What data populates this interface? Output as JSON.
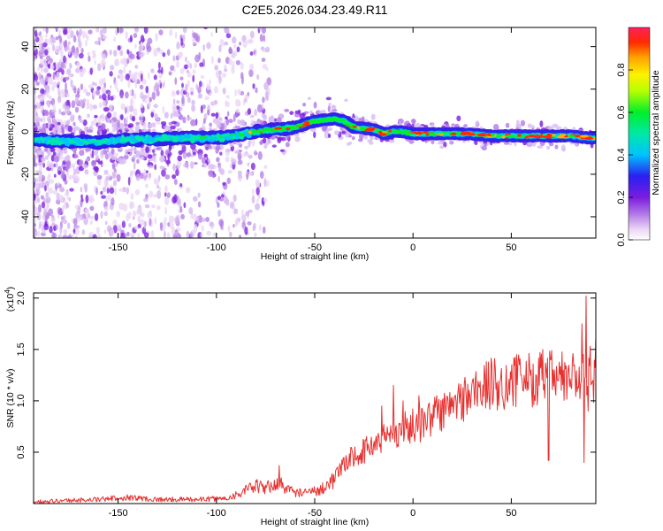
{
  "chart_data": [
    {
      "type": "heatmap",
      "title": "C2E5.2026.034.23.49.R11",
      "xlabel": "Height of straight line (km)",
      "ylabel": "Frequency (Hz)",
      "xlim": [
        -193,
        93
      ],
      "ylim": [
        -50,
        49
      ],
      "xticks": [
        -150,
        -100,
        -50,
        0,
        50
      ],
      "yticks": [
        -40,
        -20,
        0,
        20,
        40
      ],
      "center_line": [
        [
          -193,
          -4
        ],
        [
          -160,
          -5
        ],
        [
          -150,
          -4
        ],
        [
          -120,
          -3
        ],
        [
          -100,
          -3
        ],
        [
          -90,
          -2
        ],
        [
          -80,
          0
        ],
        [
          -70,
          1
        ],
        [
          -60,
          2
        ],
        [
          -50,
          5
        ],
        [
          -40,
          6
        ],
        [
          -35,
          5
        ],
        [
          -30,
          2
        ],
        [
          -20,
          1
        ],
        [
          -15,
          -1
        ],
        [
          -10,
          0
        ],
        [
          -5,
          0
        ],
        [
          0,
          -1
        ],
        [
          10,
          -1
        ],
        [
          20,
          -1
        ],
        [
          30,
          -1
        ],
        [
          40,
          -2
        ],
        [
          50,
          -2
        ],
        [
          60,
          -2
        ],
        [
          70,
          -2
        ],
        [
          80,
          -2
        ],
        [
          90,
          -3
        ]
      ],
      "colorbar": {
        "label": "Normalized spectral amplitude",
        "range": [
          0,
          1
        ],
        "ticks": [
          "0.0",
          "0.2",
          "0.4",
          "0.6",
          "0.8"
        ]
      }
    },
    {
      "type": "line",
      "xlabel": "Height of straight line (km)",
      "ylabel": "SNR (10 * v/v)",
      "scale_label": "(x10",
      "scale_exp": "4",
      "scale_close": ")",
      "xlim": [
        -193,
        93
      ],
      "ylim": [
        0,
        2.05
      ],
      "xticks": [
        -150,
        -100,
        -50,
        0,
        50
      ],
      "yticks": [
        "0.5",
        "1.0",
        "1.5",
        "2.0"
      ],
      "color": "#e8302f",
      "trend": [
        [
          -193,
          0.02
        ],
        [
          -160,
          0.04
        ],
        [
          -145,
          0.06
        ],
        [
          -130,
          0.04
        ],
        [
          -110,
          0.04
        ],
        [
          -95,
          0.05
        ],
        [
          -88,
          0.1
        ],
        [
          -80,
          0.17
        ],
        [
          -75,
          0.15
        ],
        [
          -68,
          0.2
        ],
        [
          -62,
          0.12
        ],
        [
          -55,
          0.1
        ],
        [
          -48,
          0.13
        ],
        [
          -42,
          0.2
        ],
        [
          -37,
          0.32
        ],
        [
          -32,
          0.45
        ],
        [
          -26,
          0.5
        ],
        [
          -20,
          0.58
        ],
        [
          -14,
          0.65
        ],
        [
          -8,
          0.7
        ],
        [
          -2,
          0.75
        ],
        [
          4,
          0.78
        ],
        [
          10,
          0.85
        ],
        [
          16,
          0.9
        ],
        [
          22,
          0.98
        ],
        [
          28,
          1.05
        ],
        [
          34,
          1.12
        ],
        [
          40,
          1.16
        ],
        [
          48,
          1.17
        ],
        [
          56,
          1.2
        ],
        [
          62,
          1.22
        ],
        [
          68,
          1.22
        ],
        [
          74,
          1.22
        ],
        [
          80,
          1.22
        ],
        [
          86,
          1.22
        ],
        [
          93,
          1.28
        ]
      ],
      "spikes": [
        [
          -68,
          0.37
        ],
        [
          -16,
          0.95
        ],
        [
          -10,
          1.15
        ],
        [
          -5,
          1.0
        ],
        [
          3,
          1.05
        ],
        [
          12,
          1.05
        ],
        [
          55,
          1.25
        ],
        [
          60,
          1.3
        ],
        [
          66,
          1.5
        ],
        [
          69,
          0.42
        ],
        [
          72,
          1.3
        ],
        [
          86,
          1.75
        ],
        [
          87,
          0.4
        ],
        [
          88,
          2.02
        ],
        [
          89,
          0.9
        ],
        [
          93,
          1.6
        ]
      ]
    }
  ]
}
